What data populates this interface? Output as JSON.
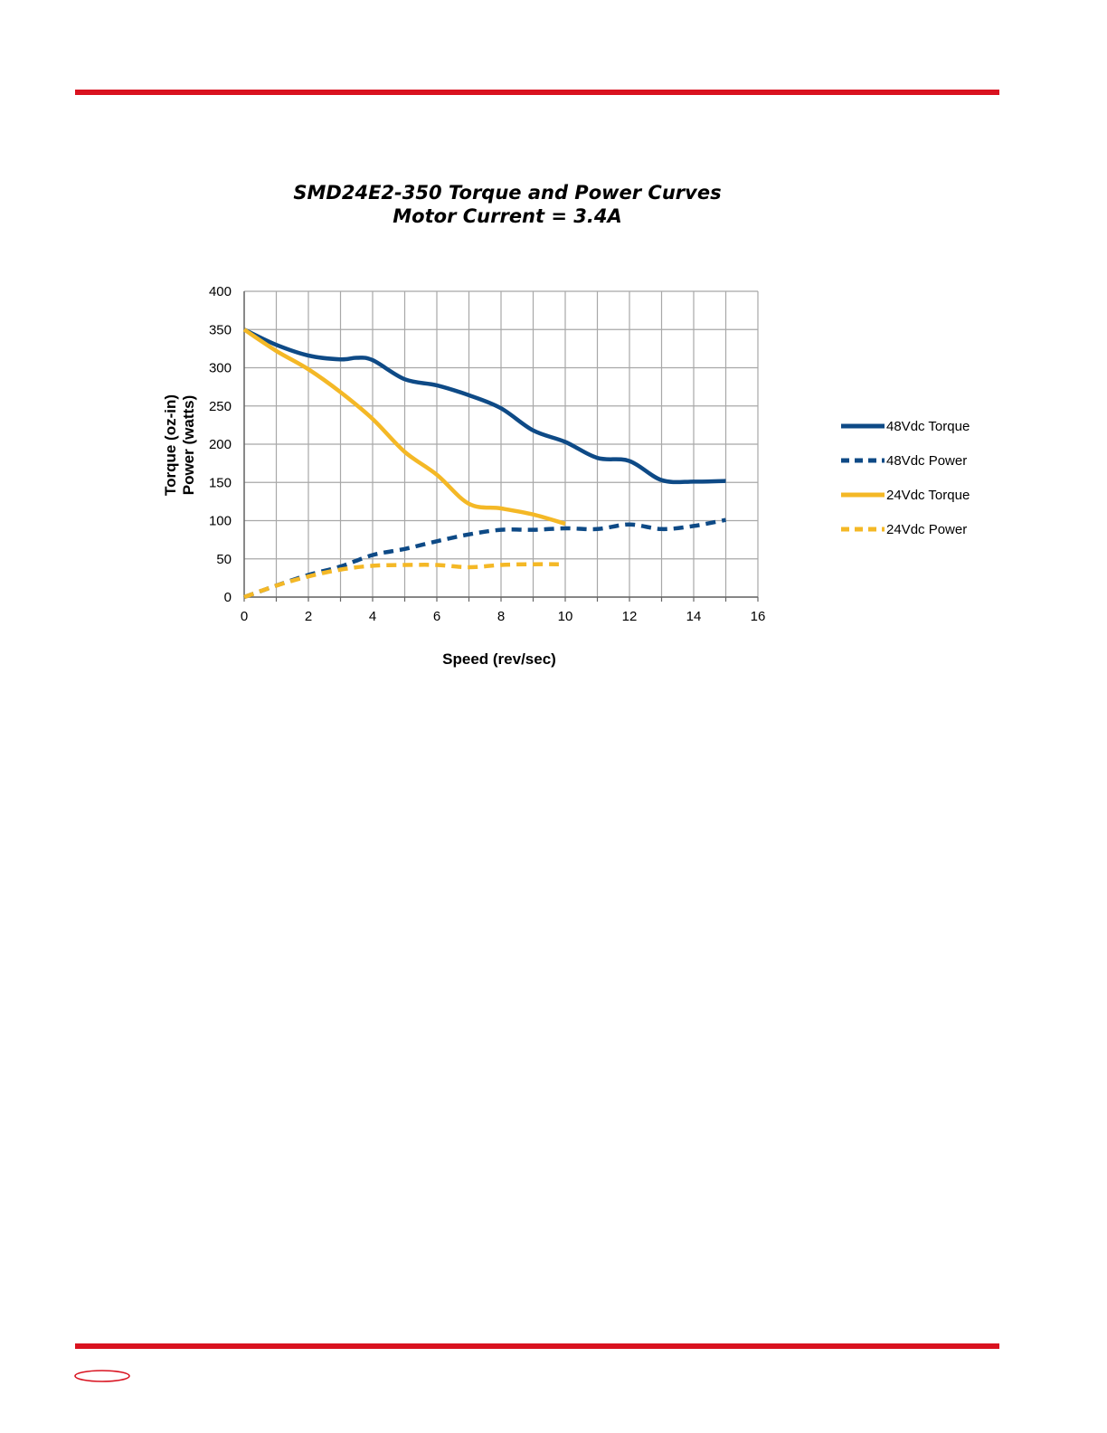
{
  "page": {
    "accent_color": "#d9121f"
  },
  "chart_data": {
    "type": "line",
    "title": "SMD24E2-350 Torque and Power Curves",
    "subtitle": "Motor Current = 3.4A",
    "xlabel": "Speed (rev/sec)",
    "ylabel_line1": "Torque  (oz-in)",
    "ylabel_line2": "Power (watts)",
    "xlim": [
      0,
      16
    ],
    "ylim": [
      0,
      400
    ],
    "xticks": [
      0,
      2,
      4,
      6,
      8,
      10,
      12,
      14,
      16
    ],
    "yticks": [
      0,
      50,
      100,
      150,
      200,
      250,
      300,
      350,
      400
    ],
    "grid": true,
    "legend_position": "right",
    "series": [
      {
        "name": "48Vdc Torque",
        "color": "#0e4a86",
        "dash": false,
        "x": [
          0,
          1,
          2,
          3,
          3.5,
          4,
          5,
          6,
          7,
          8,
          9,
          10,
          11,
          12,
          13,
          14,
          15
        ],
        "y": [
          350,
          330,
          316,
          311,
          313,
          310,
          285,
          277,
          264,
          247,
          218,
          203,
          182,
          178,
          153,
          151,
          152
        ]
      },
      {
        "name": "48Vdc Power",
        "color": "#0e4a86",
        "dash": true,
        "x": [
          0,
          1,
          2,
          3,
          4,
          5,
          6,
          7,
          8,
          9,
          10,
          11,
          12,
          13,
          14,
          15
        ],
        "y": [
          0,
          15,
          29,
          40,
          55,
          63,
          73,
          82,
          88,
          88,
          90,
          89,
          95,
          89,
          93,
          101
        ]
      },
      {
        "name": "24Vdc Torque",
        "color": "#f4b826",
        "dash": false,
        "x": [
          0,
          1,
          2,
          3,
          4,
          5,
          6,
          7,
          8,
          9,
          10
        ],
        "y": [
          350,
          322,
          298,
          268,
          233,
          190,
          160,
          122,
          116,
          108,
          96
        ]
      },
      {
        "name": "24Vdc Power",
        "color": "#f4b826",
        "dash": true,
        "x": [
          0,
          1,
          2,
          3,
          4,
          5,
          6,
          7,
          8,
          9,
          9.8
        ],
        "y": [
          0,
          15,
          27,
          36,
          41,
          42,
          42,
          39,
          42,
          43,
          43
        ]
      }
    ]
  }
}
